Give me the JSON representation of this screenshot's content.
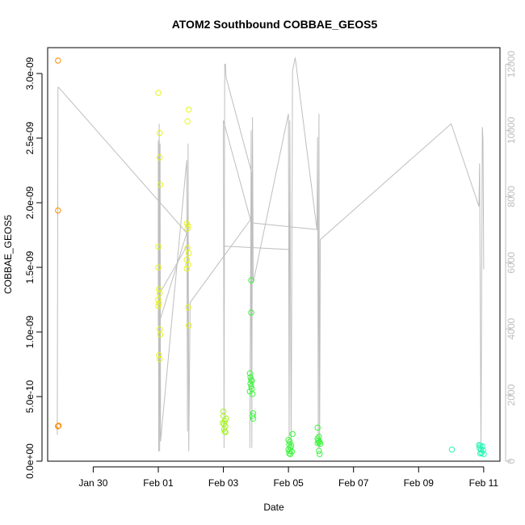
{
  "chart_data": {
    "type": "scatter",
    "title": "ATOM2 Southbound COBBAE_GEOS5",
    "xlabel": "Date",
    "ylabel": "COBBAE_GEOS5",
    "x_is_date": true,
    "xlim": [
      "2017-01-28T14:24",
      "2017-02-11T12:00"
    ],
    "ylim": [
      0,
      3.2e-09
    ],
    "x_ticks": [
      {
        "value": "2017-01-30",
        "label": "Jan 30"
      },
      {
        "value": "2017-02-01",
        "label": "Feb 01"
      },
      {
        "value": "2017-02-03",
        "label": "Feb 03"
      },
      {
        "value": "2017-02-05",
        "label": "Feb 05"
      },
      {
        "value": "2017-02-07",
        "label": "Feb 07"
      },
      {
        "value": "2017-02-09",
        "label": "Feb 09"
      },
      {
        "value": "2017-02-11",
        "label": "Feb 11"
      }
    ],
    "y_ticks": [
      {
        "value": 0,
        "label": "0.0e+00"
      },
      {
        "value": 5e-10,
        "label": "5.0e-10"
      },
      {
        "value": 1e-09,
        "label": "1.0e-09"
      },
      {
        "value": 1.5e-09,
        "label": "1.5e-09"
      },
      {
        "value": 2e-09,
        "label": "2.0e-09"
      },
      {
        "value": 2.5e-09,
        "label": "2.5e-09"
      },
      {
        "value": 3e-09,
        "label": "3.0e-09"
      }
    ],
    "y2lim": [
      0,
      12500
    ],
    "y2_ticks": [
      {
        "value": 0,
        "label": "0"
      },
      {
        "value": 2000,
        "label": "2000"
      },
      {
        "value": 4000,
        "label": "4000"
      },
      {
        "value": 6000,
        "label": "6000"
      },
      {
        "value": 8000,
        "label": "8000"
      },
      {
        "value": 10000,
        "label": "10000"
      },
      {
        "value": 12000,
        "label": "12000"
      }
    ],
    "colors": {
      "altitude_line": "#bebebe",
      "orange": "#ff8c00",
      "yellow": "#e6f51a",
      "light_green": "#a8f52a",
      "green": "#3cf53c",
      "teal": "#26f5b4",
      "axis": "#000000",
      "right_axis": "#bebebe"
    },
    "series": [
      {
        "color": "orange",
        "points": [
          [
            "2017-01-28T22:00",
            3.1e-09
          ],
          [
            "2017-01-28T22:00",
            1.94e-09
          ],
          [
            "2017-01-28T22:00",
            2.7e-10
          ],
          [
            "2017-01-28T22:30",
            2.75e-10
          ]
        ]
      },
      {
        "color": "yellow",
        "points": [
          [
            "2017-02-01T00:00",
            2.85e-09
          ],
          [
            "2017-02-01T01:00",
            2.54e-09
          ],
          [
            "2017-02-01T01:00",
            2.35e-09
          ],
          [
            "2017-02-01T01:30",
            2.14e-09
          ],
          [
            "2017-02-01T00:00",
            1.66e-09
          ],
          [
            "2017-02-01T00:00",
            1.5e-09
          ],
          [
            "2017-02-01T00:30",
            1.33e-09
          ],
          [
            "2017-02-01T01:00",
            1.3e-09
          ],
          [
            "2017-02-01T00:00",
            1.25e-09
          ],
          [
            "2017-02-01T00:30",
            1.22e-09
          ],
          [
            "2017-02-01T00:00",
            1.2e-09
          ],
          [
            "2017-02-01T01:00",
            1.02e-09
          ],
          [
            "2017-02-01T01:30",
            9.8e-10
          ],
          [
            "2017-02-01T00:30",
            8.2e-10
          ],
          [
            "2017-02-01T01:00",
            7.9e-10
          ]
        ]
      },
      {
        "color": "yellow",
        "points": [
          [
            "2017-02-01T22:30",
            2.72e-09
          ],
          [
            "2017-02-01T21:30",
            2.63e-09
          ],
          [
            "2017-02-01T21:00",
            1.84e-09
          ],
          [
            "2017-02-01T22:00",
            1.82e-09
          ],
          [
            "2017-02-01T21:30",
            1.8e-09
          ],
          [
            "2017-02-01T21:30",
            1.65e-09
          ],
          [
            "2017-02-01T22:30",
            1.61e-09
          ],
          [
            "2017-02-01T21:00",
            1.56e-09
          ],
          [
            "2017-02-01T22:00",
            1.52e-09
          ],
          [
            "2017-02-01T21:00",
            1.49e-09
          ],
          [
            "2017-02-01T22:00",
            1.19e-09
          ],
          [
            "2017-02-01T22:30",
            1.05e-09
          ]
        ]
      },
      {
        "color": "light_green",
        "points": [
          [
            "2017-02-03T00:00",
            3.85e-10
          ],
          [
            "2017-02-03T00:00",
            3.5e-10
          ],
          [
            "2017-02-03T02:00",
            3.3e-10
          ],
          [
            "2017-02-03T01:00",
            3.1e-10
          ],
          [
            "2017-02-02T23:30",
            2.95e-10
          ],
          [
            "2017-02-03T00:30",
            2.9e-10
          ],
          [
            "2017-02-03T01:30",
            2.7e-10
          ],
          [
            "2017-02-03T00:30",
            2.5e-10
          ],
          [
            "2017-02-03T01:00",
            2.3e-10
          ],
          [
            "2017-02-03T01:30",
            2.25e-10
          ]
        ]
      },
      {
        "color": "green",
        "points": [
          [
            "2017-02-03T20:30",
            1.4e-09
          ],
          [
            "2017-02-03T20:30",
            1.15e-09
          ],
          [
            "2017-02-03T19:30",
            6.8e-10
          ],
          [
            "2017-02-03T20:00",
            6.5e-10
          ],
          [
            "2017-02-03T20:30",
            6.3e-10
          ],
          [
            "2017-02-03T21:00",
            6.2e-10
          ],
          [
            "2017-02-03T20:00",
            6e-10
          ],
          [
            "2017-02-03T20:30",
            5.8e-10
          ],
          [
            "2017-02-03T21:00",
            5.6e-10
          ],
          [
            "2017-02-03T19:30",
            5.4e-10
          ],
          [
            "2017-02-03T21:30",
            5.2e-10
          ],
          [
            "2017-02-03T22:00",
            3.7e-10
          ],
          [
            "2017-02-03T21:30",
            3.5e-10
          ],
          [
            "2017-02-03T22:00",
            3.3e-10
          ]
        ]
      },
      {
        "color": "green",
        "points": [
          [
            "2017-02-05T00:00",
            1.65e-10
          ],
          [
            "2017-02-05T01:00",
            1.5e-10
          ],
          [
            "2017-02-05T03:00",
            2.1e-10
          ],
          [
            "2017-02-05T00:30",
            1.3e-10
          ],
          [
            "2017-02-05T02:00",
            1.2e-10
          ],
          [
            "2017-02-05T01:30",
            1.05e-10
          ],
          [
            "2017-02-05T00:00",
            9e-11
          ],
          [
            "2017-02-05T01:00",
            8e-11
          ],
          [
            "2017-02-05T02:30",
            7.5e-11
          ],
          [
            "2017-02-05T00:30",
            6e-11
          ],
          [
            "2017-02-05T01:30",
            5.5e-11
          ]
        ]
      },
      {
        "color": "green",
        "points": [
          [
            "2017-02-05T21:30",
            2.6e-10
          ],
          [
            "2017-02-05T22:30",
            1.9e-10
          ],
          [
            "2017-02-05T21:30",
            1.75e-10
          ],
          [
            "2017-02-05T22:00",
            1.6e-10
          ],
          [
            "2017-02-05T23:00",
            1.5e-10
          ],
          [
            "2017-02-05T22:30",
            1.45e-10
          ],
          [
            "2017-02-05T21:30",
            1.4e-10
          ],
          [
            "2017-02-05T23:30",
            1.35e-10
          ],
          [
            "2017-02-05T22:30",
            8e-11
          ],
          [
            "2017-02-05T23:00",
            5.5e-11
          ]
        ]
      },
      {
        "color": "teal",
        "points": [
          [
            "2017-02-10T00:30",
            9e-11
          ],
          [
            "2017-02-10T20:30",
            1.25e-10
          ],
          [
            "2017-02-10T21:30",
            1.2e-10
          ],
          [
            "2017-02-10T23:00",
            1.15e-10
          ],
          [
            "2017-02-10T21:00",
            1e-10
          ],
          [
            "2017-02-10T22:00",
            9e-11
          ],
          [
            "2017-02-10T23:30",
            8.5e-11
          ],
          [
            "2017-02-10T22:30",
            6.5e-11
          ],
          [
            "2017-02-10T21:30",
            6e-11
          ],
          [
            "2017-02-11T00:00",
            5.5e-11
          ]
        ]
      }
    ],
    "altitude": [
      [
        "2017-01-28T21:30",
        800
      ],
      [
        "2017-01-28T22:00",
        11300
      ],
      [
        "2017-01-28T22:30",
        11300
      ],
      [
        "2017-02-01T21:00",
        6900
      ],
      [
        "2017-02-01T00:00",
        4100
      ],
      [
        "2017-02-01T00:00",
        9700
      ],
      [
        "2017-02-01T00:20",
        300
      ],
      [
        "2017-02-01T00:40",
        10200
      ],
      [
        "2017-02-01T01:00",
        300
      ],
      [
        "2017-02-01T01:20",
        9600
      ],
      [
        "2017-02-01T01:40",
        600
      ],
      [
        "2017-02-01T21:00",
        9100
      ],
      [
        "2017-02-01T21:30",
        900
      ],
      [
        "2017-02-01T22:00",
        9600
      ],
      [
        "2017-02-01T22:30",
        300
      ],
      [
        "2017-02-01T23:30",
        4800
      ],
      [
        "2017-02-03T20:00",
        7300
      ],
      [
        "2017-02-03T00:00",
        10300
      ],
      [
        "2017-02-03T00:30",
        400
      ],
      [
        "2017-02-03T01:00",
        12000
      ],
      [
        "2017-02-03T01:30",
        12000
      ],
      [
        "2017-02-03T02:00",
        11600
      ],
      [
        "2017-02-03T21:00",
        8700
      ],
      [
        "2017-02-03T19:30",
        400
      ],
      [
        "2017-02-03T20:30",
        10000
      ],
      [
        "2017-02-03T21:00",
        400
      ],
      [
        "2017-02-03T21:30",
        10400
      ],
      [
        "2017-02-03T22:00",
        5400
      ],
      [
        "2017-02-05T00:00",
        10500
      ],
      [
        "2017-02-05T00:30",
        400
      ],
      [
        "2017-02-05T01:00",
        10300
      ],
      [
        "2017-02-05T02:00",
        400
      ],
      [
        "2017-02-05T03:00",
        11800
      ],
      [
        "2017-02-05T05:00",
        12200
      ],
      [
        "2017-02-05T21:00",
        7000
      ],
      [
        "2017-02-05T21:30",
        9800
      ],
      [
        "2017-02-05T22:00",
        400
      ],
      [
        "2017-02-05T22:30",
        10500
      ],
      [
        "2017-02-05T23:00",
        400
      ],
      [
        "2017-02-05T23:30",
        6700
      ],
      [
        "2017-02-10T00:00",
        10200
      ],
      [
        "2017-02-10T20:30",
        7700
      ],
      [
        "2017-02-10T21:00",
        9000
      ],
      [
        "2017-02-10T22:00",
        300
      ],
      [
        "2017-02-10T23:00",
        10100
      ],
      [
        "2017-02-10T23:30",
        9700
      ],
      [
        "2017-02-11T00:00",
        5800
      ]
    ],
    "altitude_extra_segments": [
      [
        [
          "2017-02-01T00:00",
          5000
        ],
        [
          "2017-02-01T22:30",
          6600
        ]
      ],
      [
        [
          "2017-02-03T00:30",
          6500
        ],
        [
          "2017-02-05T00:00",
          6400
        ]
      ],
      [
        [
          "2017-02-03T22:00",
          7200
        ],
        [
          "2017-02-05T21:30",
          7000
        ]
      ]
    ]
  }
}
